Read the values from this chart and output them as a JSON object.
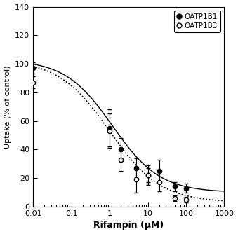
{
  "title": "",
  "xlabel": "Rifampin (μM)",
  "ylabel": "Uptake (% of control)",
  "xlim": [
    0.01,
    1000
  ],
  "ylim": [
    0,
    140
  ],
  "yticks": [
    0,
    20,
    40,
    60,
    80,
    100,
    120,
    140
  ],
  "legend": [
    "OATP1B1",
    "OATP1B3"
  ],
  "oatp1b1": {
    "x": [
      0.01,
      1.0,
      2.0,
      5.0,
      10.0,
      20.0,
      50.0,
      100.0
    ],
    "y": [
      97,
      55,
      40,
      27,
      22,
      25,
      14,
      13
    ],
    "yerr": [
      4,
      13,
      8,
      7,
      5,
      8,
      3,
      3
    ],
    "color": "black",
    "ic50": 1.2,
    "emax": 103,
    "emin": 10,
    "hill": 0.7
  },
  "oatp1b3": {
    "x": [
      0.01,
      1.0,
      2.0,
      5.0,
      10.0,
      20.0,
      50.0,
      100.0
    ],
    "y": [
      87,
      53,
      33,
      19,
      22,
      17,
      6,
      5
    ],
    "yerr": [
      4,
      12,
      8,
      9,
      7,
      6,
      2,
      2
    ],
    "color": "black",
    "ic50": 1.0,
    "emax": 103,
    "emin": 3,
    "hill": 0.65
  },
  "background_color": "#ffffff",
  "figsize": [
    3.39,
    3.34
  ],
  "dpi": 100
}
